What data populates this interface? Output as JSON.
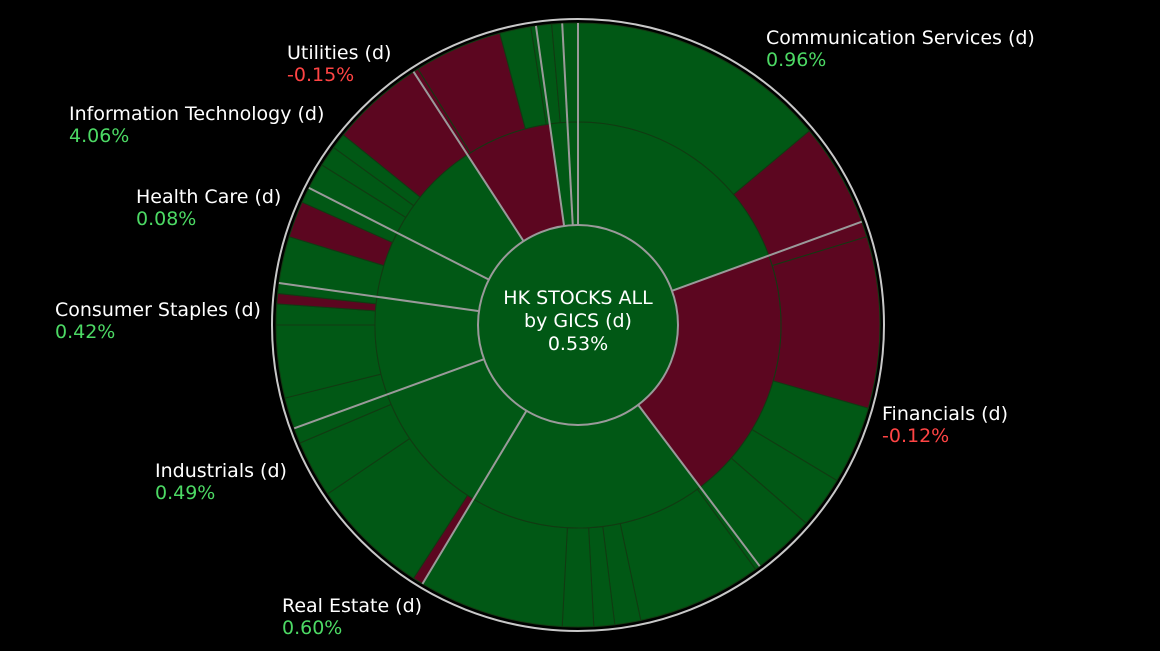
{
  "chart_data": {
    "type": "sunburst",
    "center": {
      "line1": "HK STOCKS ALL",
      "line2": "by GICS (d)",
      "value": "0.53%"
    },
    "colors": {
      "positive": "#015815",
      "negative": "#5c0620",
      "negative_bright": "#6b0a25",
      "border": "#9a9a9a",
      "edge": "#c8c8c8"
    },
    "sectors": [
      {
        "name": "Communication Services (d)",
        "value": "0.96%",
        "direction": "up"
      },
      {
        "name": "Financials (d)",
        "value": "-0.12%",
        "direction": "down"
      },
      {
        "name": "Real Estate (d)",
        "value": "0.60%",
        "direction": "up"
      },
      {
        "name": "Industrials (d)",
        "value": "0.49%",
        "direction": "up"
      },
      {
        "name": "Consumer Staples (d)",
        "value": "0.42%",
        "direction": "up"
      },
      {
        "name": "Health Care (d)",
        "value": "0.08%",
        "direction": "up"
      },
      {
        "name": "Information Technology (d)",
        "value": "4.06%",
        "direction": "up"
      },
      {
        "name": "Utilities (d)",
        "value": "-0.15%",
        "direction": "down"
      }
    ],
    "middle_ring": [
      {
        "sector": "Communication Services (d)",
        "start": 0,
        "end": 70,
        "direction": "up"
      },
      {
        "sector": "Financials (d)",
        "start": 70,
        "end": 143,
        "direction": "down"
      },
      {
        "sector": "Real Estate (d)",
        "start": 143,
        "end": 211,
        "direction": "up"
      },
      {
        "sector": "Industrials (d)",
        "start": 211,
        "end": 250,
        "direction": "up"
      },
      {
        "sector": "Consumer Staples (d)",
        "start": 250,
        "end": 278,
        "direction": "up"
      },
      {
        "sector": "Health Care (d)",
        "start": 278,
        "end": 297,
        "direction": "up"
      },
      {
        "sector": "Information Technology (d)",
        "start": 297,
        "end": 327,
        "direction": "up"
      },
      {
        "sector": "Utilities (d)",
        "start": 327,
        "end": 352,
        "direction": "down"
      },
      {
        "sector": "",
        "start": 352,
        "end": 357,
        "direction": "up"
      },
      {
        "sector": "",
        "start": 357,
        "end": 360,
        "direction": "up"
      }
    ],
    "outer_ring": [
      {
        "start": 0,
        "end": 50,
        "direction": "up"
      },
      {
        "start": 50,
        "end": 73,
        "direction": "down"
      },
      {
        "start": 73,
        "end": 106,
        "direction": "down"
      },
      {
        "start": 106,
        "end": 121,
        "direction": "up"
      },
      {
        "start": 121,
        "end": 131,
        "direction": "up"
      },
      {
        "start": 131,
        "end": 144,
        "direction": "up"
      },
      {
        "start": 144,
        "end": 168,
        "direction": "up"
      },
      {
        "start": 168,
        "end": 173,
        "direction": "up"
      },
      {
        "start": 173,
        "end": 177,
        "direction": "up"
      },
      {
        "start": 177,
        "end": 183,
        "direction": "up"
      },
      {
        "start": 183,
        "end": 211,
        "direction": "up"
      },
      {
        "start": 211,
        "end": 213,
        "direction": "down"
      },
      {
        "start": 213,
        "end": 236,
        "direction": "up"
      },
      {
        "start": 236,
        "end": 247,
        "direction": "up"
      },
      {
        "start": 247,
        "end": 256,
        "direction": "up"
      },
      {
        "start": 256,
        "end": 270,
        "direction": "up"
      },
      {
        "start": 270,
        "end": 274,
        "direction": "up"
      },
      {
        "start": 274,
        "end": 276,
        "direction": "down"
      },
      {
        "start": 276,
        "end": 287,
        "direction": "up"
      },
      {
        "start": 287,
        "end": 294,
        "direction": "down"
      },
      {
        "start": 294,
        "end": 302,
        "direction": "up"
      },
      {
        "start": 302,
        "end": 306,
        "direction": "up"
      },
      {
        "start": 306,
        "end": 309,
        "direction": "up"
      },
      {
        "start": 309,
        "end": 328,
        "direction": "down"
      },
      {
        "start": 328,
        "end": 345,
        "direction": "down"
      },
      {
        "start": 345,
        "end": 351,
        "direction": "up"
      },
      {
        "start": 351,
        "end": 355,
        "direction": "up"
      },
      {
        "start": 355,
        "end": 360,
        "direction": "up"
      }
    ]
  }
}
